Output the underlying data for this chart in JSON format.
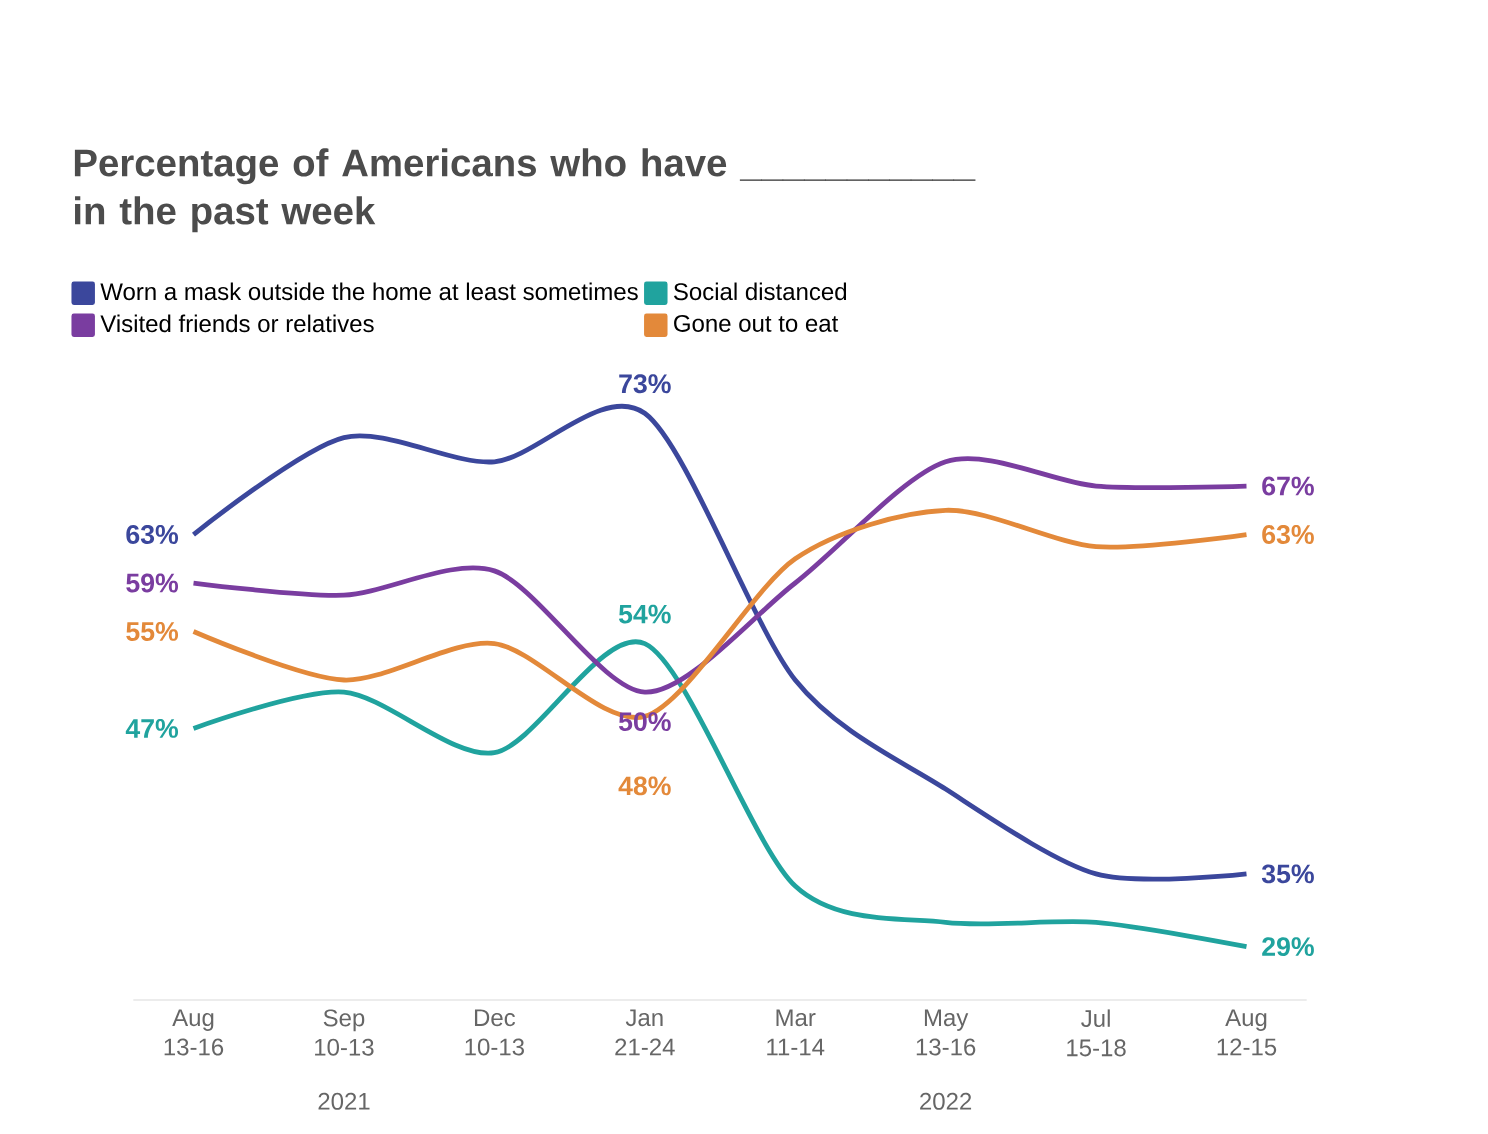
{
  "chart_data": {
    "type": "line",
    "title": "Percentage of Americans who have ___________ in the past week",
    "categories": [
      "Aug 13-16",
      "Sep 10-13",
      "Dec 10-13",
      "Jan 21-24",
      "Mar 11-14",
      "May 13-16",
      "Jul 15-18",
      "Aug 12-15"
    ],
    "series": [
      {
        "name": "Worn a mask outside the home at least sometimes",
        "color": "#3b479c",
        "values": [
          63,
          71,
          69,
          73,
          51,
          42,
          35,
          35
        ],
        "value_labels": [
          "63%",
          null,
          null,
          "73%",
          null,
          null,
          null,
          "35%"
        ]
      },
      {
        "name": "Social distanced",
        "color": "#20a39e",
        "values": [
          47,
          50,
          45,
          54,
          34,
          31,
          31,
          29
        ],
        "value_labels": [
          "47%",
          null,
          null,
          "54%",
          null,
          null,
          null,
          "29%"
        ]
      },
      {
        "name": "Visited friends or relatives",
        "color": "#7a3da0",
        "values": [
          59,
          58,
          60,
          50,
          59,
          69,
          67,
          67
        ],
        "value_labels": [
          "59%",
          null,
          null,
          "50%",
          null,
          null,
          null,
          "67%"
        ]
      },
      {
        "name": "Gone out to eat",
        "color": "#e3893a",
        "values": [
          55,
          51,
          54,
          48,
          61,
          65,
          62,
          63
        ],
        "value_labels": [
          "55%",
          null,
          null,
          "48%",
          null,
          null,
          null,
          "63%"
        ]
      }
    ],
    "legend": "top",
    "marker": "none",
    "line_style": "solid",
    "annotations": [
      "2021",
      "2022"
    ]
  }
}
